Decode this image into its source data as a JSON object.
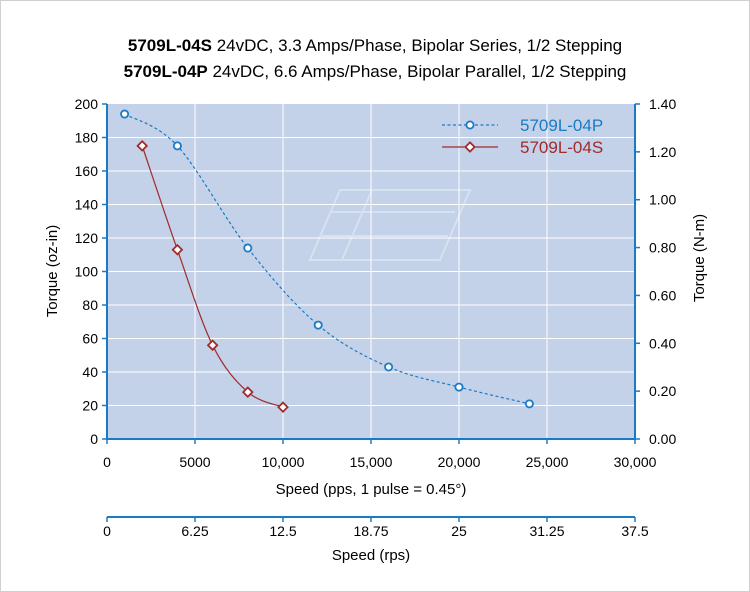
{
  "title_lines": [
    {
      "model": "5709L-04S",
      "text": " 24vDC, 3.3 Amps/Phase, Bipolar Series, 1/2 Stepping"
    },
    {
      "model": "5709L-04P",
      "text": " 24vDC, 6.6 Amps/Phase, Bipolar Parallel, 1/2 Stepping"
    }
  ],
  "chart_data": {
    "type": "line",
    "title": "5709L-04S 24vDC, 3.3 Amps/Phase, Bipolar Series, 1/2 Stepping / 5709L-04P 24vDC, 6.6 Amps/Phase, Bipolar Parallel, 1/2 Stepping",
    "xlabel": "Speed (pps, 1 pulse = 0.45°)",
    "ylabel": "Torque (oz-in)",
    "y2label": "Torque (N-m)",
    "x2label": "Speed (rps)",
    "xlim": [
      0,
      30000
    ],
    "ylim": [
      0,
      200
    ],
    "y2lim": [
      0,
      1.4
    ],
    "x2lim": [
      0,
      37.5
    ],
    "xticks": [
      {
        "v": 0,
        "label": "0"
      },
      {
        "v": 5000,
        "label": "5000"
      },
      {
        "v": 10000,
        "label": "10,000"
      },
      {
        "v": 15000,
        "label": "15,000"
      },
      {
        "v": 20000,
        "label": "20,000"
      },
      {
        "v": 25000,
        "label": "25,000"
      },
      {
        "v": 30000,
        "label": "30,000"
      }
    ],
    "yticks": [
      0,
      20,
      40,
      60,
      80,
      100,
      120,
      140,
      160,
      180,
      200
    ],
    "y2ticks": [
      "0.00",
      "0.20",
      "0.40",
      "0.60",
      "0.80",
      "1.00",
      "1.20",
      "1.40"
    ],
    "x2ticks": [
      "0",
      "6.25",
      "12.5",
      "18.75",
      "25",
      "31.25",
      "37.5"
    ],
    "grid": true,
    "legend_position": "top-right",
    "series": [
      {
        "name": "5709L-04P",
        "color": "#1a7bc4",
        "style": "dashed",
        "marker": "circle",
        "x": [
          1000,
          4000,
          8000,
          12000,
          16000,
          20000,
          24000
        ],
        "y": [
          194,
          175,
          114,
          68,
          43,
          31,
          21
        ]
      },
      {
        "name": "5709L-04S",
        "color": "#a02b2b",
        "style": "solid",
        "marker": "diamond",
        "x": [
          2000,
          4000,
          6000,
          8000,
          10000
        ],
        "y": [
          175,
          113,
          56,
          28,
          19
        ]
      }
    ]
  }
}
